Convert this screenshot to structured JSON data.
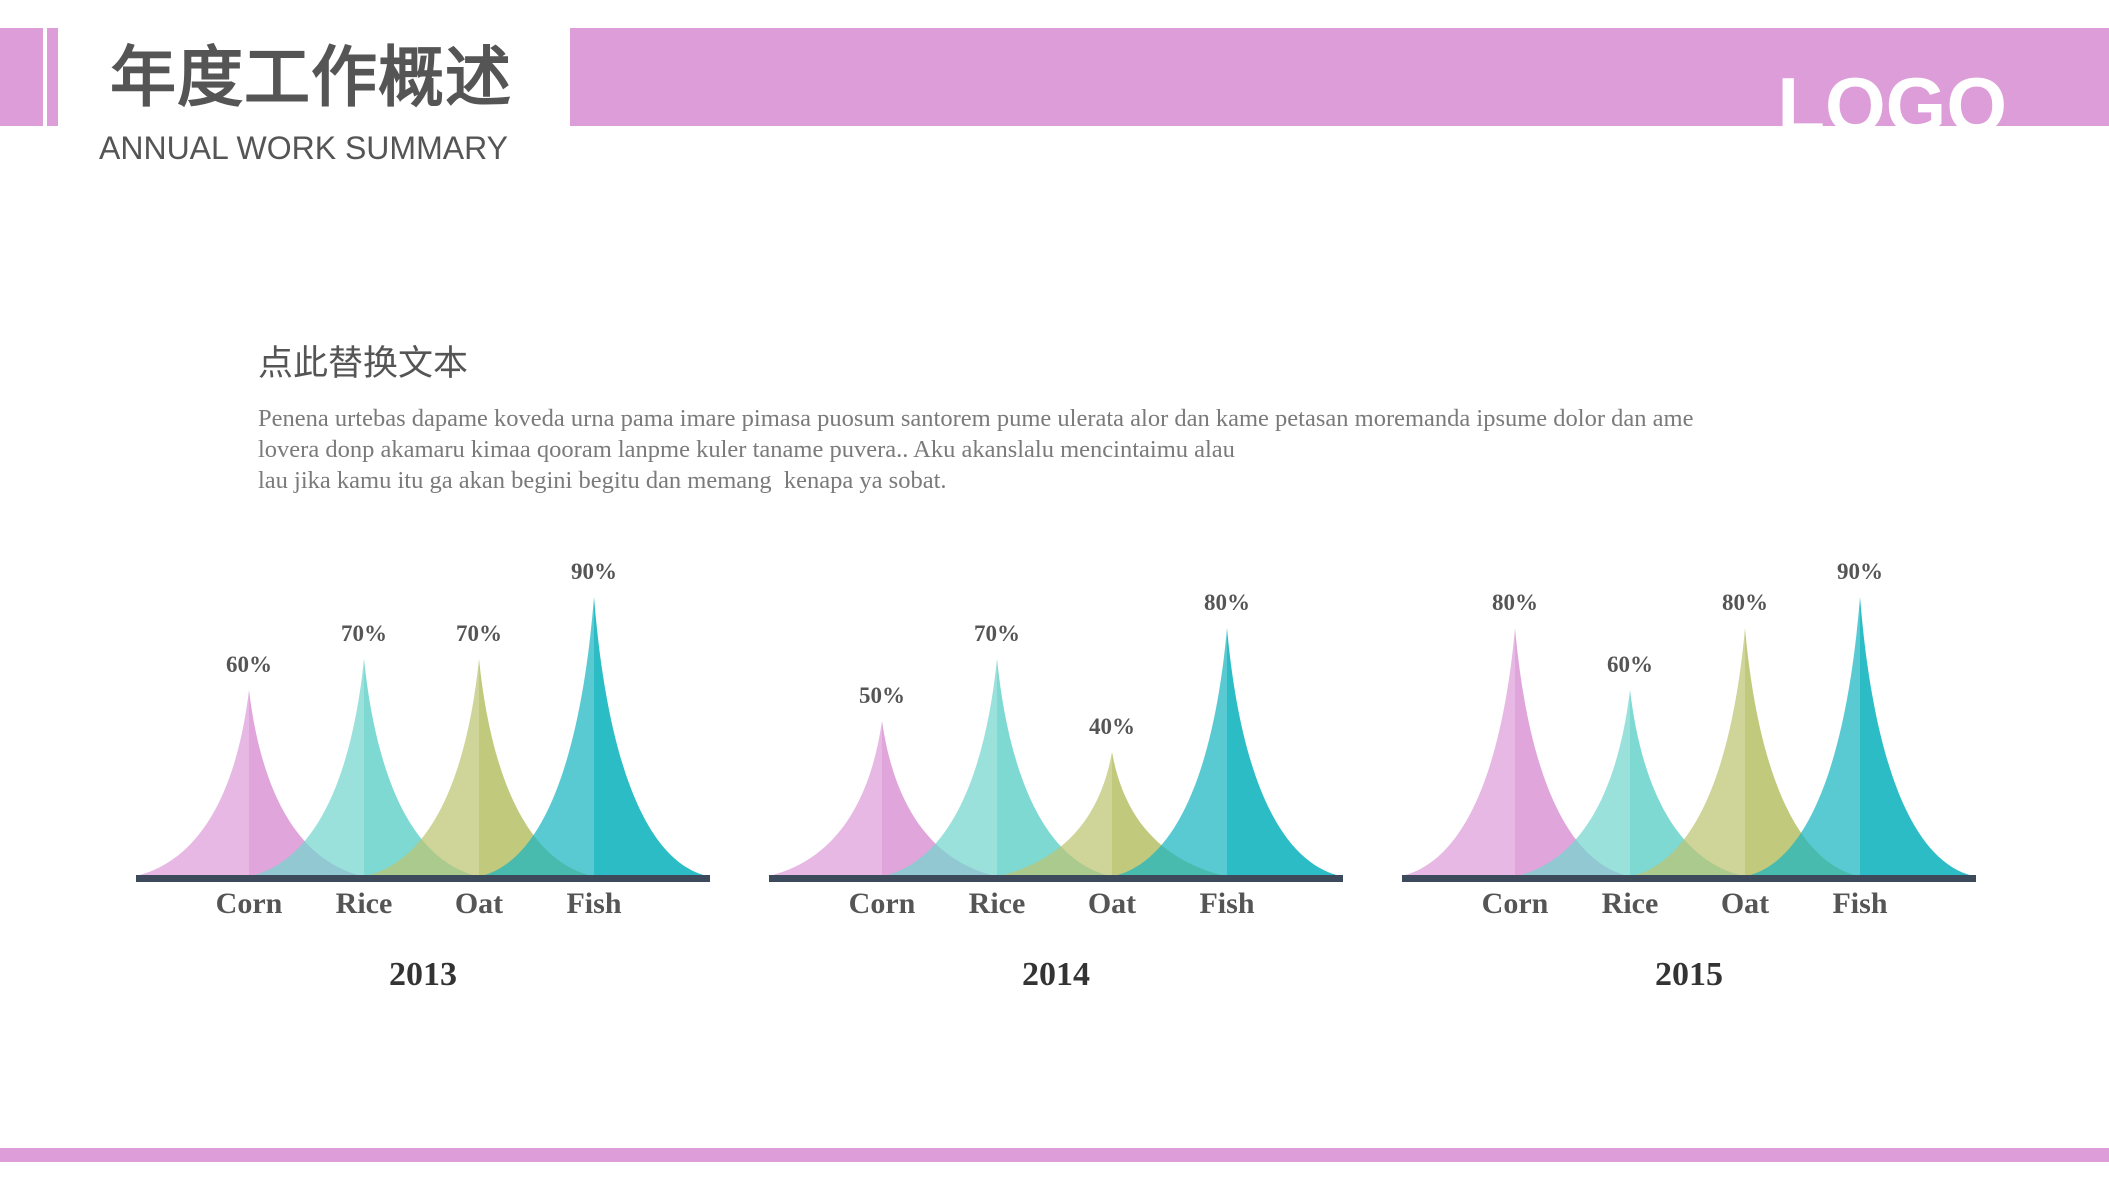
{
  "header": {
    "title_cn": "年度工作概述",
    "title_en": "ANNUAL WORK SUMMARY",
    "logo": "LOGO"
  },
  "content": {
    "heading": "点此替换文本",
    "paragraph_lines": [
      "Penena urtebas dapame koveda urna pama imare pimasa puosum santorem pume ulerata alor dan kame petasan moremanda ipsume dolor dan ame",
      "lovera donp akamaru kimaa qooram lanpme kuler taname puvera.. Aku akanslalu mencintaimu alau",
      "lau jika kamu itu ga akan begini begitu dan memang  kenapa ya sobat."
    ]
  },
  "colors": {
    "brand": "#dd9dd8",
    "axis": "#3d4a5c",
    "text": "#555555",
    "series": [
      "#dd9dd8",
      "#73d6cf",
      "#bcc472",
      "#1ab6c1"
    ]
  },
  "chart_data": [
    {
      "type": "area",
      "title": "2013",
      "categories": [
        "Corn",
        "Rice",
        "Oat",
        "Fish"
      ],
      "values": [
        60,
        70,
        70,
        90
      ],
      "labels": [
        "60%",
        "70%",
        "70%",
        "90%"
      ],
      "ylim": [
        0,
        100
      ],
      "unit": "%"
    },
    {
      "type": "area",
      "title": "2014",
      "categories": [
        "Corn",
        "Rice",
        "Oat",
        "Fish"
      ],
      "values": [
        50,
        70,
        40,
        80
      ],
      "labels": [
        "50%",
        "70%",
        "40%",
        "80%"
      ],
      "ylim": [
        0,
        100
      ],
      "unit": "%"
    },
    {
      "type": "area",
      "title": "2015",
      "categories": [
        "Corn",
        "Rice",
        "Oat",
        "Fish"
      ],
      "values": [
        80,
        60,
        80,
        90
      ],
      "labels": [
        "80%",
        "60%",
        "80%",
        "90%"
      ],
      "ylim": [
        0,
        100
      ],
      "unit": "%"
    }
  ]
}
